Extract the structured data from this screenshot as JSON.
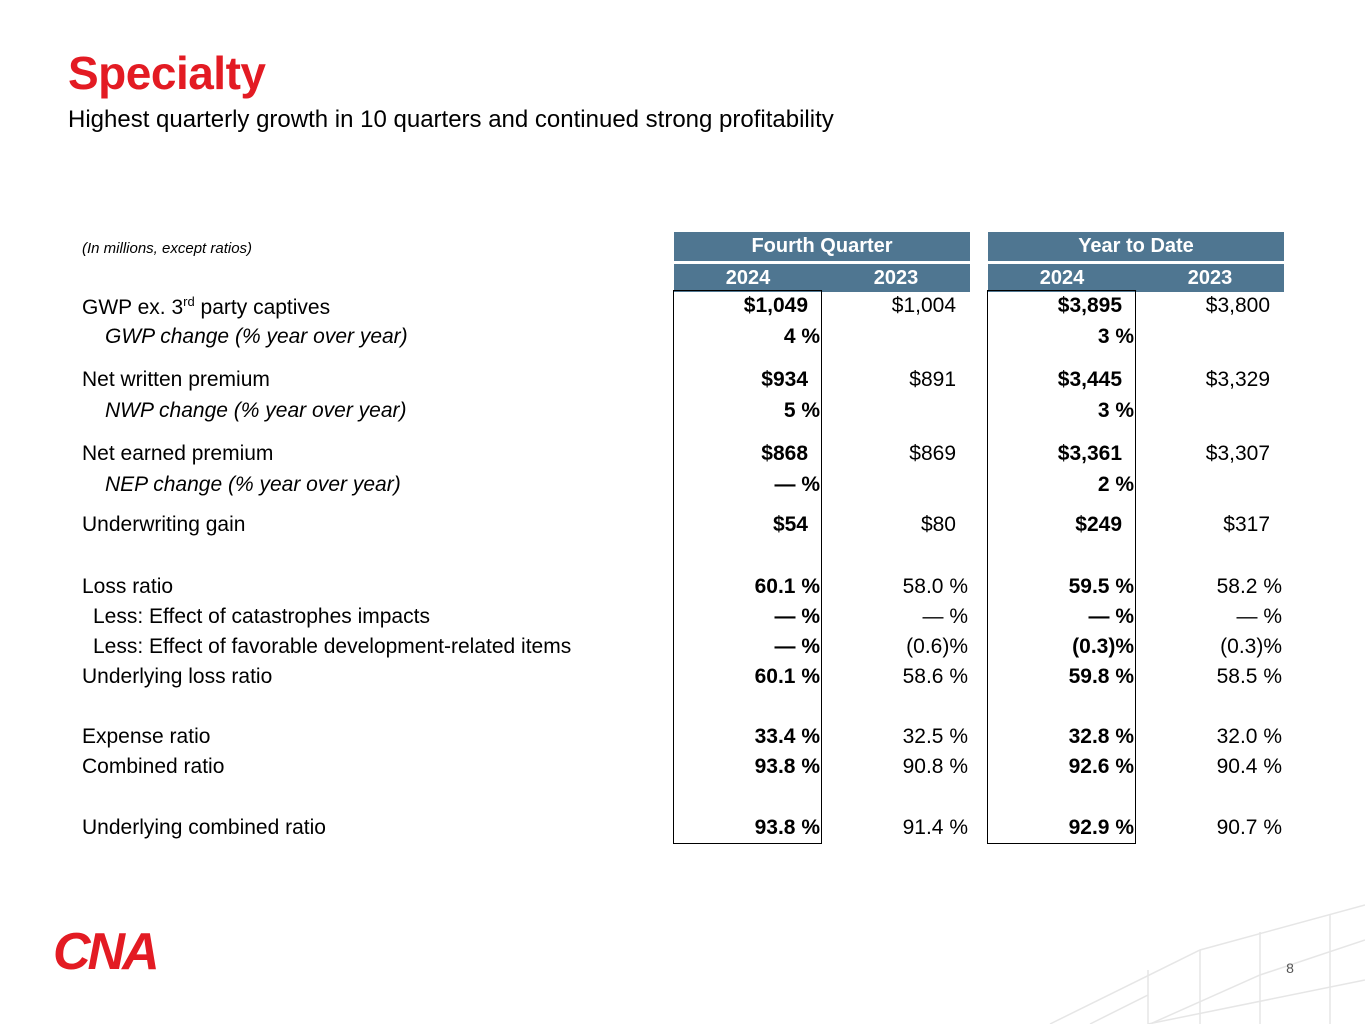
{
  "title": "Specialty",
  "subtitle": "Highest quarterly growth in 10 quarters and continued strong profitability",
  "units_note": "(In millions, except ratios)",
  "headers": {
    "fourth_quarter": "Fourth Quarter",
    "year_to_date": "Year to Date",
    "q_2024": "2024",
    "q_2023": "2023",
    "ytd_2024": "2024",
    "ytd_2023": "2023"
  },
  "rows": {
    "gwp": {
      "label": "GWP ex. 3",
      "sup": "rd",
      "label_rest": " party captives",
      "q2024": "$1,049",
      "q2023": "$1,004",
      "y2024": "$3,895",
      "y2023": "$3,800"
    },
    "gwp_change": {
      "label": "GWP change (% year over year)",
      "q2024": "4 %",
      "y2024": "3 %"
    },
    "nwp": {
      "label": "Net written premium",
      "q2024": "$934",
      "q2023": "$891",
      "y2024": "$3,445",
      "y2023": "$3,329"
    },
    "nwp_change": {
      "label": "NWP change (% year over year)",
      "q2024": "5 %",
      "y2024": "3 %"
    },
    "nep": {
      "label": "Net earned premium",
      "q2024": "$868",
      "q2023": "$869",
      "y2024": "$3,361",
      "y2023": "$3,307"
    },
    "nep_change": {
      "label": "NEP change (% year over year)",
      "q2024": "— %",
      "y2024": "2 %"
    },
    "uw_gain": {
      "label": "Underwriting gain",
      "q2024": "$54",
      "q2023": "$80",
      "y2024": "$249",
      "y2023": "$317"
    },
    "loss_ratio": {
      "label": "Loss ratio",
      "q2024": "60.1 %",
      "q2023": "58.0 %",
      "y2024": "59.5 %",
      "y2023": "58.2 %"
    },
    "cat_impacts": {
      "label": "Less: Effect of catastrophes impacts",
      "q2024": "— %",
      "q2023": "— %",
      "y2024": "— %",
      "y2023": "— %"
    },
    "dev_items": {
      "label": "Less: Effect of favorable development-related items",
      "q2024": "— %",
      "q2023": "(0.6)%",
      "y2024": "(0.3)%",
      "y2023": "(0.3)%"
    },
    "underlying_loss": {
      "label": "Underlying loss ratio",
      "q2024": "60.1 %",
      "q2023": "58.6 %",
      "y2024": "59.8 %",
      "y2023": "58.5 %"
    },
    "expense_ratio": {
      "label": "Expense ratio",
      "q2024": "33.4 %",
      "q2023": "32.5 %",
      "y2024": "32.8 %",
      "y2023": "32.0 %"
    },
    "combined_ratio": {
      "label": "Combined ratio",
      "q2024": "93.8 %",
      "q2023": "90.8 %",
      "y2024": "92.6 %",
      "y2023": "90.4 %"
    },
    "underlying_combined": {
      "label": "Underlying combined ratio",
      "q2024": "93.8 %",
      "q2023": "91.4 %",
      "y2024": "92.9 %",
      "y2023": "90.7 %"
    }
  },
  "logo_text": "CNA",
  "page_number": "8",
  "colors": {
    "brand_red": "#e31b23",
    "header_blue": "#4f7691"
  }
}
